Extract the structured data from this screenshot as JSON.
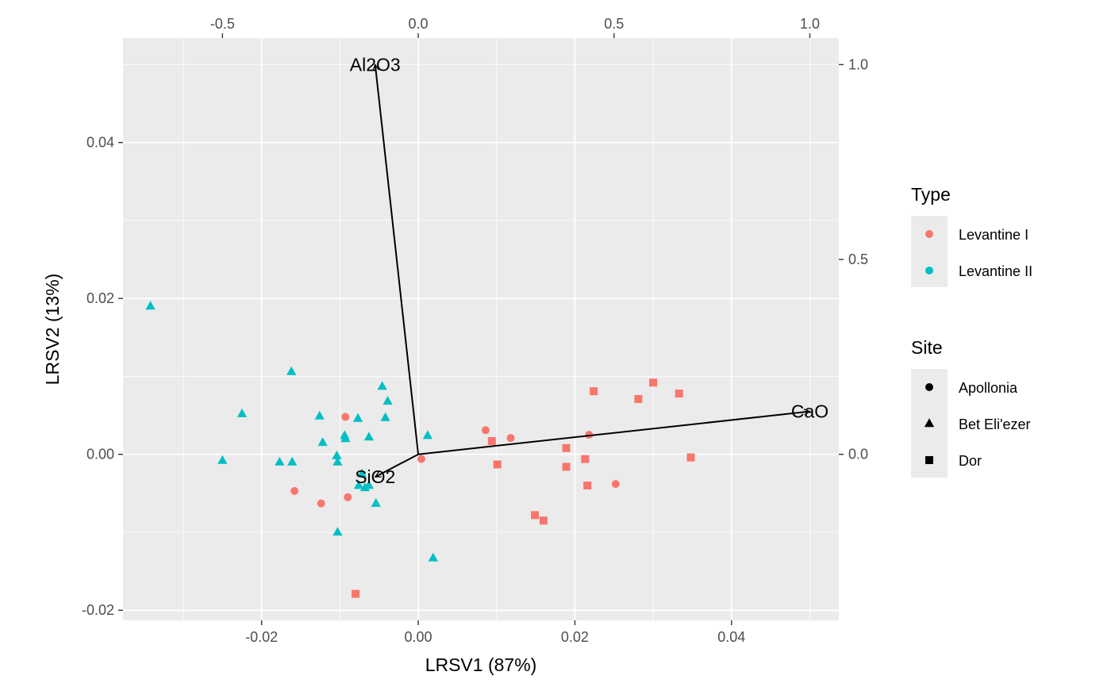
{
  "chart_data": {
    "type": "scatter",
    "title": "",
    "xlabel": "LRSV1 (87%)",
    "ylabel": "LRSV2 (13%)",
    "xlim": [
      -0.0377,
      0.0537
    ],
    "ylim": [
      -0.0213,
      0.0534
    ],
    "x_ticks": [
      -0.02,
      0.0,
      0.02,
      0.04
    ],
    "x_tick_labels": [
      "-0.02",
      "0.00",
      "0.02",
      "0.04"
    ],
    "y_ticks": [
      -0.02,
      0.0,
      0.02,
      0.04
    ],
    "y_tick_labels": [
      "-0.02",
      "0.00",
      "0.02",
      "0.04"
    ],
    "secondary_x_ticks": [
      -0.5,
      0.0,
      0.5,
      1.0
    ],
    "secondary_x_tick_labels": [
      "-0.5",
      "0.0",
      "0.5",
      "1.0"
    ],
    "secondary_y_ticks": [
      0.0,
      0.5,
      1.0
    ],
    "secondary_y_tick_labels": [
      "0.0",
      "0.5",
      "1.0"
    ],
    "secondary_axis_scale": 20.0,
    "grid": true,
    "legend_position": "right",
    "legends": {
      "type": {
        "title": "Type",
        "entries": [
          {
            "label": "Levantine I",
            "color": "#F8766D"
          },
          {
            "label": "Levantine II",
            "color": "#00BFC4"
          }
        ]
      },
      "site": {
        "title": "Site",
        "entries": [
          {
            "label": "Apollonia",
            "shape": "circle"
          },
          {
            "label": "Bet Eli'ezer",
            "shape": "triangle"
          },
          {
            "label": "Dor",
            "shape": "square"
          }
        ]
      }
    },
    "points": [
      {
        "x": -0.0342,
        "y": 0.019,
        "type": "Levantine II",
        "site": "Bet Eli'ezer"
      },
      {
        "x": -0.0162,
        "y": 0.0106,
        "type": "Levantine II",
        "site": "Bet Eli'ezer"
      },
      {
        "x": -0.0225,
        "y": 0.0052,
        "type": "Levantine II",
        "site": "Bet Eli'ezer"
      },
      {
        "x": -0.025,
        "y": -0.0008,
        "type": "Levantine II",
        "site": "Bet Eli'ezer"
      },
      {
        "x": -0.0177,
        "y": -0.001,
        "type": "Levantine II",
        "site": "Bet Eli'ezer"
      },
      {
        "x": -0.0161,
        "y": -0.001,
        "type": "Levantine II",
        "site": "Bet Eli'ezer"
      },
      {
        "x": -0.0126,
        "y": 0.0049,
        "type": "Levantine II",
        "site": "Bet Eli'ezer"
      },
      {
        "x": -0.0122,
        "y": 0.0015,
        "type": "Levantine II",
        "site": "Bet Eli'ezer"
      },
      {
        "x": -0.0104,
        "y": -0.0002,
        "type": "Levantine II",
        "site": "Bet Eli'ezer"
      },
      {
        "x": -0.0103,
        "y": -0.001,
        "type": "Levantine II",
        "site": "Bet Eli'ezer"
      },
      {
        "x": -0.0094,
        "y": 0.0024,
        "type": "Levantine II",
        "site": "Bet Eli'ezer"
      },
      {
        "x": -0.0093,
        "y": 0.002,
        "type": "Levantine II",
        "site": "Bet Eli'ezer"
      },
      {
        "x": -0.0077,
        "y": 0.0046,
        "type": "Levantine II",
        "site": "Bet Eli'ezer"
      },
      {
        "x": -0.0063,
        "y": 0.0022,
        "type": "Levantine II",
        "site": "Bet Eli'ezer"
      },
      {
        "x": -0.0046,
        "y": 0.0087,
        "type": "Levantine II",
        "site": "Bet Eli'ezer"
      },
      {
        "x": -0.0039,
        "y": 0.0068,
        "type": "Levantine II",
        "site": "Bet Eli'ezer"
      },
      {
        "x": -0.0042,
        "y": 0.0047,
        "type": "Levantine II",
        "site": "Bet Eli'ezer"
      },
      {
        "x": -0.0072,
        "y": -0.0025,
        "type": "Levantine II",
        "site": "Bet Eli'ezer"
      },
      {
        "x": -0.0076,
        "y": -0.004,
        "type": "Levantine II",
        "site": "Bet Eli'ezer"
      },
      {
        "x": -0.0068,
        "y": -0.0043,
        "type": "Levantine II",
        "site": "Bet Eli'ezer"
      },
      {
        "x": -0.0063,
        "y": -0.004,
        "type": "Levantine II",
        "site": "Bet Eli'ezer"
      },
      {
        "x": -0.0054,
        "y": -0.0063,
        "type": "Levantine II",
        "site": "Bet Eli'ezer"
      },
      {
        "x": -0.0103,
        "y": -0.01,
        "type": "Levantine II",
        "site": "Bet Eli'ezer"
      },
      {
        "x": 0.0012,
        "y": 0.0024,
        "type": "Levantine II",
        "site": "Bet Eli'ezer"
      },
      {
        "x": 0.0019,
        "y": -0.0133,
        "type": "Levantine II",
        "site": "Bet Eli'ezer"
      },
      {
        "x": -0.0093,
        "y": 0.0048,
        "type": "Levantine I",
        "site": "Apollonia"
      },
      {
        "x": -0.0158,
        "y": -0.0047,
        "type": "Levantine I",
        "site": "Apollonia"
      },
      {
        "x": -0.0124,
        "y": -0.0063,
        "type": "Levantine I",
        "site": "Apollonia"
      },
      {
        "x": -0.009,
        "y": -0.0055,
        "type": "Levantine I",
        "site": "Apollonia"
      },
      {
        "x": 0.0004,
        "y": -0.0006,
        "type": "Levantine I",
        "site": "Apollonia"
      },
      {
        "x": 0.0086,
        "y": 0.0031,
        "type": "Levantine I",
        "site": "Apollonia"
      },
      {
        "x": 0.0118,
        "y": 0.0021,
        "type": "Levantine I",
        "site": "Apollonia"
      },
      {
        "x": 0.0218,
        "y": 0.0025,
        "type": "Levantine I",
        "site": "Apollonia"
      },
      {
        "x": 0.0252,
        "y": -0.0038,
        "type": "Levantine I",
        "site": "Apollonia"
      },
      {
        "x": 0.0094,
        "y": 0.0017,
        "type": "Levantine I",
        "site": "Dor"
      },
      {
        "x": 0.0101,
        "y": -0.0013,
        "type": "Levantine I",
        "site": "Dor"
      },
      {
        "x": 0.0189,
        "y": 0.0008,
        "type": "Levantine I",
        "site": "Dor"
      },
      {
        "x": 0.0189,
        "y": -0.0016,
        "type": "Levantine I",
        "site": "Dor"
      },
      {
        "x": 0.0213,
        "y": -0.0006,
        "type": "Levantine I",
        "site": "Dor"
      },
      {
        "x": 0.0216,
        "y": -0.004,
        "type": "Levantine I",
        "site": "Dor"
      },
      {
        "x": 0.0224,
        "y": 0.0081,
        "type": "Levantine I",
        "site": "Dor"
      },
      {
        "x": 0.0281,
        "y": 0.0071,
        "type": "Levantine I",
        "site": "Dor"
      },
      {
        "x": 0.03,
        "y": 0.0092,
        "type": "Levantine I",
        "site": "Dor"
      },
      {
        "x": 0.0333,
        "y": 0.0078,
        "type": "Levantine I",
        "site": "Dor"
      },
      {
        "x": 0.0348,
        "y": -0.0004,
        "type": "Levantine I",
        "site": "Dor"
      },
      {
        "x": 0.0149,
        "y": -0.0078,
        "type": "Levantine I",
        "site": "Dor"
      },
      {
        "x": 0.016,
        "y": -0.0085,
        "type": "Levantine I",
        "site": "Dor"
      },
      {
        "x": -0.008,
        "y": -0.0179,
        "type": "Levantine I",
        "site": "Dor"
      }
    ],
    "arrows": [
      {
        "label": "Al2O3",
        "x": -0.11,
        "y": 1.0
      },
      {
        "label": "CaO",
        "x": 1.0,
        "y": 0.11
      },
      {
        "label": "SiO2",
        "x": -0.11,
        "y": -0.058
      }
    ]
  }
}
